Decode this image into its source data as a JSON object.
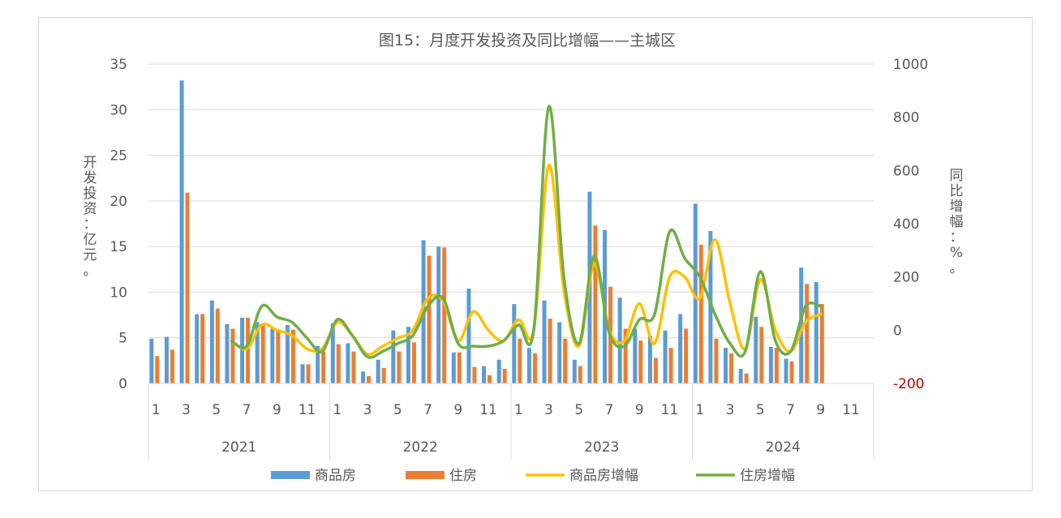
{
  "chart_data": {
    "type": "bar",
    "title": "图15：月度开发投资及同比增幅——主城区",
    "ylabel": "开发投资：亿元。",
    "y2label": "同比增幅：%。",
    "ylim": [
      0,
      35
    ],
    "yticks": [
      0,
      5,
      10,
      15,
      20,
      25,
      30,
      35
    ],
    "y2lim": [
      -200,
      1000
    ],
    "y2ticks": [
      -200,
      0,
      200,
      400,
      600,
      800,
      1000
    ],
    "y2_highlight_tick": -200,
    "y2_highlight_color": "#c00000",
    "grid": true,
    "legend_position": "bottom",
    "categories": [
      "1",
      "2",
      "3",
      "4",
      "5",
      "6",
      "7",
      "8",
      "9",
      "10",
      "11",
      "12",
      "1",
      "2",
      "3",
      "4",
      "5",
      "6",
      "7",
      "8",
      "9",
      "10",
      "11",
      "12",
      "1",
      "2",
      "3",
      "4",
      "5",
      "6",
      "7",
      "8",
      "9",
      "10",
      "11",
      "12",
      "1",
      "2",
      "3",
      "4",
      "5",
      "6",
      "7",
      "8",
      "9",
      "10",
      "11",
      "12"
    ],
    "tick_labels": [
      "1",
      "3",
      "5",
      "7",
      "9",
      "11"
    ],
    "groups": [
      {
        "label": "2021",
        "count": 12
      },
      {
        "label": "2022",
        "count": 12
      },
      {
        "label": "2023",
        "count": 12
      },
      {
        "label": "2024",
        "count": 12
      }
    ],
    "series": [
      {
        "name": "商品房",
        "kind": "bar",
        "axis": "left",
        "color": "#5b9bd5",
        "values": [
          4.9,
          5.1,
          33.2,
          7.6,
          9.1,
          6.5,
          7.2,
          6.7,
          6.0,
          6.4,
          2.1,
          4.1,
          6.6,
          4.4,
          1.3,
          2.6,
          5.8,
          6.2,
          15.7,
          15.0,
          3.4,
          10.4,
          1.9,
          2.6,
          8.7,
          3.9,
          9.1,
          6.7,
          2.6,
          21.0,
          16.8,
          9.4,
          6.0,
          5.2,
          5.8,
          7.6,
          19.7,
          16.7,
          3.9,
          1.6,
          7.3,
          4.0,
          2.7,
          12.7,
          11.1,
          null,
          null,
          null
        ]
      },
      {
        "name": "住房",
        "kind": "bar",
        "axis": "left",
        "color": "#ed7d31",
        "values": [
          3.0,
          3.7,
          20.9,
          7.6,
          8.2,
          6.0,
          7.2,
          6.6,
          5.9,
          5.9,
          2.1,
          3.5,
          4.3,
          3.5,
          0.8,
          1.7,
          3.5,
          4.5,
          14.0,
          14.9,
          3.4,
          1.8,
          0.9,
          1.6,
          4.9,
          3.3,
          7.1,
          4.9,
          1.9,
          17.3,
          10.6,
          6.0,
          4.7,
          2.8,
          3.9,
          6.0,
          15.2,
          4.9,
          3.3,
          1.1,
          6.2,
          3.9,
          2.4,
          10.9,
          8.7,
          null,
          null,
          null
        ]
      },
      {
        "name": "商品房增幅",
        "kind": "line",
        "axis": "right",
        "color": "#ffc000",
        "values": [
          null,
          null,
          null,
          null,
          null,
          -40,
          -70,
          20,
          0,
          -20,
          -70,
          -70,
          30,
          -20,
          -90,
          -60,
          -30,
          0,
          120,
          110,
          -40,
          70,
          0,
          -40,
          40,
          0,
          620,
          150,
          -60,
          250,
          0,
          -40,
          100,
          -50,
          200,
          200,
          120,
          340,
          100,
          -70,
          190,
          0,
          -80,
          30,
          60,
          null,
          null,
          null
        ]
      },
      {
        "name": "住房增幅",
        "kind": "line",
        "axis": "right",
        "color": "#70ad47",
        "values": [
          null,
          null,
          null,
          null,
          null,
          -40,
          -60,
          90,
          50,
          30,
          -30,
          -80,
          40,
          -20,
          -100,
          -80,
          -50,
          -20,
          90,
          120,
          -50,
          -60,
          -60,
          -40,
          20,
          0,
          840,
          200,
          -50,
          280,
          -10,
          -60,
          40,
          60,
          370,
          270,
          200,
          60,
          -50,
          -80,
          220,
          -40,
          -80,
          90,
          90,
          null,
          null,
          null
        ]
      }
    ]
  }
}
